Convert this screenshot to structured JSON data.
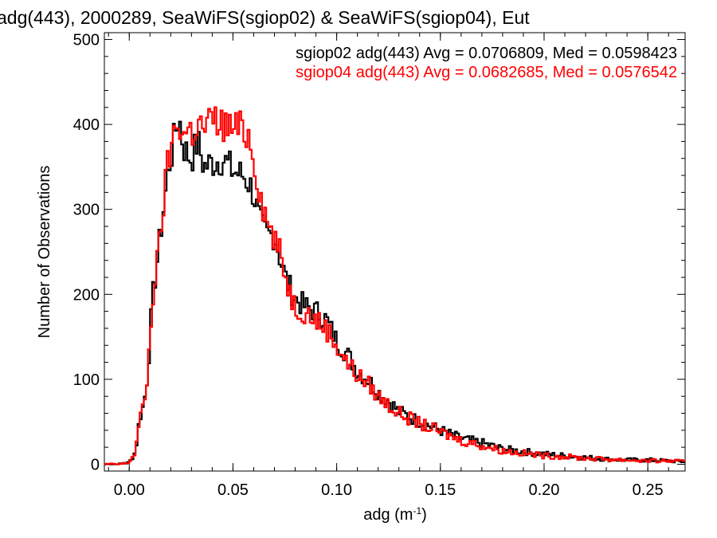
{
  "chart_data": {
    "type": "line",
    "title": "adg(443), 2000289, SeaWiFS(sgiop02) & SeaWiFS(sgiop04), Eut",
    "xlabel": "adg (m",
    "xlabel_sup": "-1",
    "xlabel_end": ")",
    "ylabel": "Number of Observations",
    "xlim": [
      -0.012,
      0.268
    ],
    "ylim": [
      -8,
      508
    ],
    "xticks": [
      0.0,
      0.05,
      0.1,
      0.15,
      0.2,
      0.25
    ],
    "xtick_labels": [
      "0.00",
      "0.05",
      "0.10",
      "0.15",
      "0.20",
      "0.25"
    ],
    "yticks": [
      0,
      100,
      200,
      300,
      400,
      500
    ],
    "ytick_labels": [
      "0",
      "100",
      "200",
      "300",
      "400",
      "500"
    ],
    "grid": false,
    "legend_position": "top-right",
    "series": [
      {
        "name": "sgiop02 adg(443) Avg = 0.0706809, Med = 0.0598423",
        "color": "#000000",
        "x": [
          -0.01,
          -0.005,
          0.0,
          0.003,
          0.005,
          0.007,
          0.009,
          0.011,
          0.013,
          0.015,
          0.017,
          0.019,
          0.021,
          0.022,
          0.024,
          0.026,
          0.028,
          0.03,
          0.033,
          0.036,
          0.04,
          0.045,
          0.05,
          0.055,
          0.058,
          0.06,
          0.063,
          0.066,
          0.07,
          0.073,
          0.076,
          0.08,
          0.085,
          0.09,
          0.095,
          0.1,
          0.105,
          0.11,
          0.115,
          0.12,
          0.125,
          0.13,
          0.14,
          0.15,
          0.16,
          0.17,
          0.18,
          0.19,
          0.2,
          0.21,
          0.22,
          0.23,
          0.24,
          0.25,
          0.26,
          0.267
        ],
        "y": [
          0,
          0,
          2,
          15,
          55,
          70,
          110,
          190,
          230,
          270,
          310,
          350,
          370,
          390,
          410,
          375,
          365,
          360,
          380,
          350,
          355,
          360,
          345,
          340,
          330,
          318,
          285,
          270,
          270,
          240,
          215,
          195,
          185,
          180,
          170,
          145,
          130,
          110,
          100,
          85,
          75,
          62,
          50,
          40,
          30,
          25,
          18,
          15,
          12,
          10,
          8,
          6,
          5,
          5,
          4,
          3
        ]
      },
      {
        "name": "sgiop04 adg(443) Avg = 0.0682685, Med = 0.0576542",
        "color": "#ff0000",
        "x": [
          -0.01,
          -0.005,
          0.0,
          0.003,
          0.005,
          0.007,
          0.009,
          0.011,
          0.013,
          0.015,
          0.017,
          0.019,
          0.021,
          0.022,
          0.024,
          0.026,
          0.028,
          0.03,
          0.033,
          0.036,
          0.04,
          0.045,
          0.05,
          0.055,
          0.058,
          0.06,
          0.063,
          0.066,
          0.07,
          0.073,
          0.076,
          0.08,
          0.085,
          0.09,
          0.095,
          0.1,
          0.105,
          0.11,
          0.115,
          0.12,
          0.125,
          0.13,
          0.14,
          0.15,
          0.16,
          0.17,
          0.18,
          0.19,
          0.2,
          0.21,
          0.22,
          0.23,
          0.24,
          0.25,
          0.26,
          0.267
        ],
        "y": [
          0,
          0,
          2,
          15,
          55,
          65,
          110,
          190,
          225,
          270,
          320,
          360,
          380,
          395,
          405,
          385,
          395,
          390,
          400,
          395,
          405,
          400,
          395,
          395,
          385,
          360,
          320,
          290,
          265,
          245,
          215,
          185,
          180,
          170,
          160,
          140,
          120,
          105,
          95,
          80,
          70,
          60,
          48,
          38,
          28,
          22,
          16,
          13,
          10,
          9,
          7,
          6,
          5,
          4,
          4,
          3
        ]
      }
    ]
  }
}
